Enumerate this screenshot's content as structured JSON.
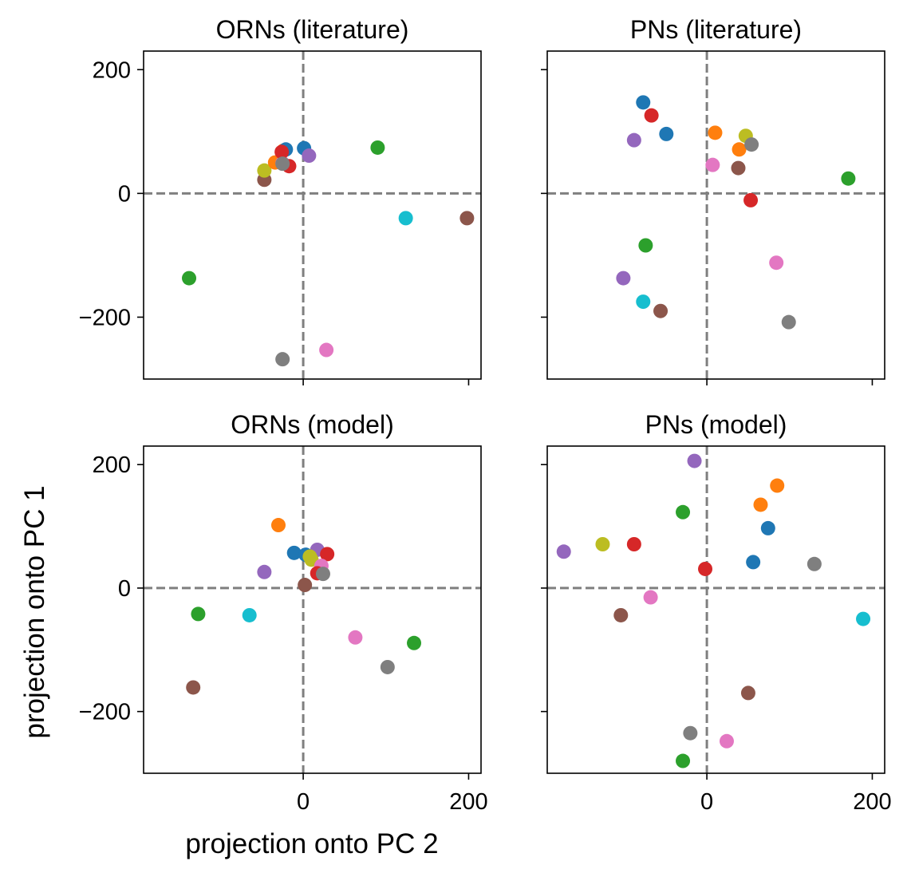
{
  "figure": {
    "xlabel": "projection onto PC 2",
    "ylabel": "projection onto PC 1"
  },
  "colors": {
    "blue": "#1f77b4",
    "orange": "#ff7f0e",
    "green": "#2ca02c",
    "red": "#d62728",
    "purple": "#9467bd",
    "brown": "#8c564b",
    "pink": "#e377c2",
    "gray": "#7f7f7f",
    "olive": "#bcbd22",
    "cyan": "#17becf"
  },
  "chart_data": [
    {
      "type": "scatter",
      "title": "ORNs (literature)",
      "xlim": [
        -193,
        215
      ],
      "ylim": [
        -300,
        230
      ],
      "xticks": [
        0,
        200
      ],
      "yticks": [
        -200,
        0,
        200
      ],
      "show_xticklabels": false,
      "show_yticklabels": true,
      "reference_lines": {
        "x": 0,
        "y": 0,
        "style": "dashed",
        "color": "#7f7f7f"
      },
      "points": [
        {
          "x": -138,
          "y": -137,
          "color": "green"
        },
        {
          "x": -47,
          "y": 22,
          "color": "brown"
        },
        {
          "x": -47,
          "y": 37,
          "color": "olive"
        },
        {
          "x": -34,
          "y": 50,
          "color": "orange"
        },
        {
          "x": -24,
          "y": 69,
          "color": "orange"
        },
        {
          "x": -21,
          "y": 71,
          "color": "blue"
        },
        {
          "x": -25,
          "y": 49,
          "color": "pink"
        },
        {
          "x": -17,
          "y": 44,
          "color": "red"
        },
        {
          "x": -26,
          "y": 67,
          "color": "red"
        },
        {
          "x": -25,
          "y": 48,
          "color": "gray"
        },
        {
          "x": 1,
          "y": 73,
          "color": "blue"
        },
        {
          "x": 7,
          "y": 61,
          "color": "purple"
        },
        {
          "x": 90,
          "y": 74,
          "color": "green"
        },
        {
          "x": 124,
          "y": -40,
          "color": "cyan"
        },
        {
          "x": 198,
          "y": -40,
          "color": "brown"
        },
        {
          "x": -25,
          "y": -268,
          "color": "gray"
        },
        {
          "x": 28,
          "y": -253,
          "color": "pink"
        }
      ]
    },
    {
      "type": "scatter",
      "title": "PNs (literature)",
      "xlim": [
        -193,
        215
      ],
      "ylim": [
        -300,
        230
      ],
      "xticks": [
        0,
        200
      ],
      "yticks": [
        -200,
        0,
        200
      ],
      "show_xticklabels": false,
      "show_yticklabels": false,
      "reference_lines": {
        "x": 0,
        "y": 0,
        "style": "dashed",
        "color": "#7f7f7f"
      },
      "points": [
        {
          "x": -77,
          "y": 147,
          "color": "blue"
        },
        {
          "x": -67,
          "y": 126,
          "color": "red"
        },
        {
          "x": -49,
          "y": 96,
          "color": "blue"
        },
        {
          "x": -88,
          "y": 86,
          "color": "purple"
        },
        {
          "x": 10,
          "y": 98,
          "color": "orange"
        },
        {
          "x": 47,
          "y": 93,
          "color": "olive"
        },
        {
          "x": 39,
          "y": 71,
          "color": "orange"
        },
        {
          "x": 54,
          "y": 79,
          "color": "gray"
        },
        {
          "x": 7,
          "y": 46,
          "color": "pink"
        },
        {
          "x": 38,
          "y": 41,
          "color": "brown"
        },
        {
          "x": 53,
          "y": -11,
          "color": "red"
        },
        {
          "x": 171,
          "y": 24,
          "color": "green"
        },
        {
          "x": -74,
          "y": -84,
          "color": "green"
        },
        {
          "x": 84,
          "y": -112,
          "color": "pink"
        },
        {
          "x": -101,
          "y": -137,
          "color": "purple"
        },
        {
          "x": -77,
          "y": -175,
          "color": "cyan"
        },
        {
          "x": -56,
          "y": -190,
          "color": "brown"
        },
        {
          "x": 99,
          "y": -208,
          "color": "gray"
        }
      ]
    },
    {
      "type": "scatter",
      "title": "ORNs (model)",
      "xlim": [
        -193,
        215
      ],
      "ylim": [
        -300,
        230
      ],
      "xticks": [
        0,
        200
      ],
      "yticks": [
        -200,
        0,
        200
      ],
      "show_xticklabels": true,
      "show_yticklabels": true,
      "reference_lines": {
        "x": 0,
        "y": 0,
        "style": "dashed",
        "color": "#7f7f7f"
      },
      "points": [
        {
          "x": -30,
          "y": 102,
          "color": "orange"
        },
        {
          "x": -11,
          "y": 57,
          "color": "blue"
        },
        {
          "x": 3,
          "y": 54,
          "color": "blue"
        },
        {
          "x": 17,
          "y": 62,
          "color": "purple"
        },
        {
          "x": 29,
          "y": 55,
          "color": "red"
        },
        {
          "x": 8,
          "y": 51,
          "color": "olive"
        },
        {
          "x": 10,
          "y": 46,
          "color": "olive"
        },
        {
          "x": 22,
          "y": 36,
          "color": "pink"
        },
        {
          "x": 17,
          "y": 24,
          "color": "red"
        },
        {
          "x": 24,
          "y": 23,
          "color": "gray"
        },
        {
          "x": -47,
          "y": 26,
          "color": "purple"
        },
        {
          "x": 2,
          "y": 5,
          "color": "brown"
        },
        {
          "x": -127,
          "y": -42,
          "color": "green"
        },
        {
          "x": -65,
          "y": -44,
          "color": "cyan"
        },
        {
          "x": 63,
          "y": -80,
          "color": "pink"
        },
        {
          "x": 134,
          "y": -89,
          "color": "green"
        },
        {
          "x": 102,
          "y": -128,
          "color": "gray"
        },
        {
          "x": -133,
          "y": -161,
          "color": "brown"
        }
      ]
    },
    {
      "type": "scatter",
      "title": "PNs (model)",
      "xlim": [
        -193,
        215
      ],
      "ylim": [
        -300,
        230
      ],
      "xticks": [
        0,
        200
      ],
      "yticks": [
        -200,
        0,
        200
      ],
      "show_xticklabels": true,
      "show_yticklabels": false,
      "reference_lines": {
        "x": 0,
        "y": 0,
        "style": "dashed",
        "color": "#7f7f7f"
      },
      "points": [
        {
          "x": -15,
          "y": 206,
          "color": "purple"
        },
        {
          "x": 85,
          "y": 166,
          "color": "orange"
        },
        {
          "x": 65,
          "y": 135,
          "color": "orange"
        },
        {
          "x": -29,
          "y": 123,
          "color": "green"
        },
        {
          "x": 74,
          "y": 97,
          "color": "blue"
        },
        {
          "x": -126,
          "y": 71,
          "color": "olive"
        },
        {
          "x": -88,
          "y": 71,
          "color": "red"
        },
        {
          "x": -173,
          "y": 59,
          "color": "purple"
        },
        {
          "x": 56,
          "y": 42,
          "color": "blue"
        },
        {
          "x": 130,
          "y": 39,
          "color": "gray"
        },
        {
          "x": -2,
          "y": 31,
          "color": "red"
        },
        {
          "x": -68,
          "y": -15,
          "color": "pink"
        },
        {
          "x": -104,
          "y": -44,
          "color": "brown"
        },
        {
          "x": 189,
          "y": -50,
          "color": "cyan"
        },
        {
          "x": 50,
          "y": -170,
          "color": "brown"
        },
        {
          "x": -20,
          "y": -235,
          "color": "gray"
        },
        {
          "x": 24,
          "y": -248,
          "color": "pink"
        },
        {
          "x": -29,
          "y": -280,
          "color": "green"
        }
      ]
    }
  ]
}
